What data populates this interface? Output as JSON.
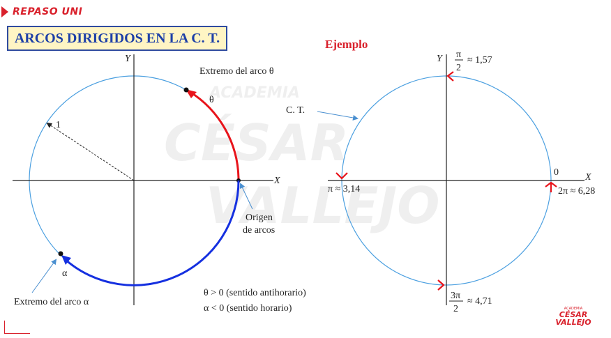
{
  "header": {
    "tag": "REPASO UNI"
  },
  "title": "ARCOS DIRIGIDOS EN LA C. T.",
  "example_label": "Ejemplo",
  "left_diagram": {
    "axis_x": "X",
    "axis_y": "Y",
    "radius_label": "1",
    "theta_end_label": "Extremo del arco θ",
    "theta_symbol": "θ",
    "origin_label_line1": "Origen",
    "origin_label_line2": "de arcos",
    "alpha_symbol": "α",
    "alpha_end_label": "Extremo del arco α",
    "theta_condition": "θ > 0 (sentido antihorario)",
    "alpha_condition": "α < 0 (sentido horario)",
    "theta_color": "#e8141b",
    "alpha_color": "#1530e0"
  },
  "right_diagram": {
    "axis_x": "X",
    "axis_y": "Y",
    "ct_label": "C. T.",
    "zero_label": "0",
    "pi_half_num": "π",
    "pi_half_den": "2",
    "pi_half_approx": "≈ 1,57",
    "pi_label": "π ≈ 3,14",
    "three_pi_half_num": "3π",
    "three_pi_half_den": "2",
    "three_pi_half_approx": "≈ 4,71",
    "two_pi_label": "2π ≈ 6,28",
    "arrow_color": "#e8141b"
  },
  "circle_color": "#4a9fe0",
  "watermark": {
    "line1": "ACADEMIA",
    "line2": "CÉSAR",
    "line3": "VALLEJO"
  },
  "logo": {
    "line1": "ACADEMIA",
    "line2": "CÉSAR",
    "line3": "VALLEJO"
  }
}
